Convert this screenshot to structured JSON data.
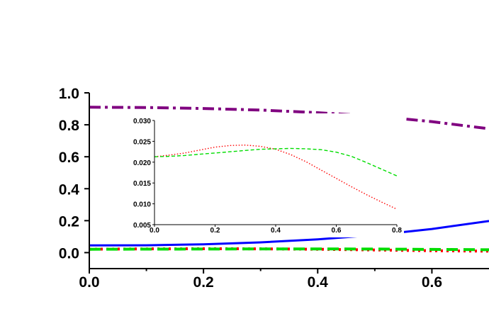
{
  "chart_data": [
    {
      "type": "line",
      "title": "",
      "xlabel": "",
      "ylabel": "",
      "xlim": [
        0.0,
        0.7
      ],
      "ylim": [
        -0.1,
        1.0
      ],
      "x_ticks": [
        "0.0",
        "0.2",
        "0.4",
        "0.6"
      ],
      "y_ticks": [
        "0.0",
        "0.2",
        "0.4",
        "0.6",
        "0.8",
        "1.0"
      ],
      "grid": false,
      "series": [
        {
          "color": "#800080",
          "line_style": "dash-dot",
          "x": [
            0.0,
            0.1,
            0.2,
            0.3,
            0.4,
            0.5,
            0.6,
            0.7
          ],
          "y": [
            0.91,
            0.908,
            0.902,
            0.892,
            0.876,
            0.854,
            0.82,
            0.775
          ]
        },
        {
          "color": "#0000ff",
          "line_style": "solid",
          "x": [
            0.0,
            0.1,
            0.2,
            0.3,
            0.4,
            0.5,
            0.6,
            0.7
          ],
          "y": [
            0.045,
            0.046,
            0.052,
            0.064,
            0.083,
            0.11,
            0.148,
            0.198
          ]
        },
        {
          "color": "#ff0000",
          "line_style": "dotted",
          "x": [
            0.0,
            0.1,
            0.2,
            0.3,
            0.4,
            0.5,
            0.6,
            0.7
          ],
          "y": [
            0.0214,
            0.0232,
            0.0242,
            0.0238,
            0.0212,
            0.0168,
            0.0118,
            0.009
          ]
        },
        {
          "color": "#00dd00",
          "line_style": "dashed",
          "x": [
            0.0,
            0.1,
            0.2,
            0.3,
            0.4,
            0.5,
            0.6,
            0.7
          ],
          "y": [
            0.0212,
            0.0218,
            0.0226,
            0.0232,
            0.0232,
            0.0222,
            0.02,
            0.018
          ]
        }
      ]
    },
    {
      "type": "line",
      "title": "",
      "xlabel": "",
      "ylabel": "",
      "xlim": [
        0.0,
        0.8
      ],
      "ylim": [
        0.005,
        0.03
      ],
      "x_ticks": [
        "0.0",
        "0.2",
        "0.4",
        "0.6",
        "0.8"
      ],
      "y_ticks": [
        "0.005",
        "0.010",
        "0.015",
        "0.020",
        "0.025",
        "0.030"
      ],
      "grid": false,
      "series": [
        {
          "color": "#ff0000",
          "line_style": "dotted",
          "x": [
            0.0,
            0.05,
            0.1,
            0.15,
            0.2,
            0.25,
            0.3,
            0.35,
            0.4,
            0.45,
            0.5,
            0.55,
            0.6,
            0.65,
            0.7,
            0.75,
            0.8
          ],
          "y": [
            0.0213,
            0.0217,
            0.0222,
            0.0229,
            0.0236,
            0.024,
            0.0241,
            0.0238,
            0.0231,
            0.0218,
            0.0201,
            0.0181,
            0.0161,
            0.0141,
            0.0122,
            0.0104,
            0.0087
          ]
        },
        {
          "color": "#00dd00",
          "line_style": "dashed",
          "x": [
            0.0,
            0.05,
            0.1,
            0.15,
            0.2,
            0.25,
            0.3,
            0.35,
            0.4,
            0.45,
            0.5,
            0.55,
            0.6,
            0.65,
            0.7,
            0.75,
            0.8
          ],
          "y": [
            0.0213,
            0.0214,
            0.0216,
            0.0219,
            0.0222,
            0.0225,
            0.0228,
            0.0231,
            0.0232,
            0.0233,
            0.0232,
            0.023,
            0.0224,
            0.0214,
            0.0199,
            0.0183,
            0.0167
          ]
        }
      ]
    }
  ]
}
